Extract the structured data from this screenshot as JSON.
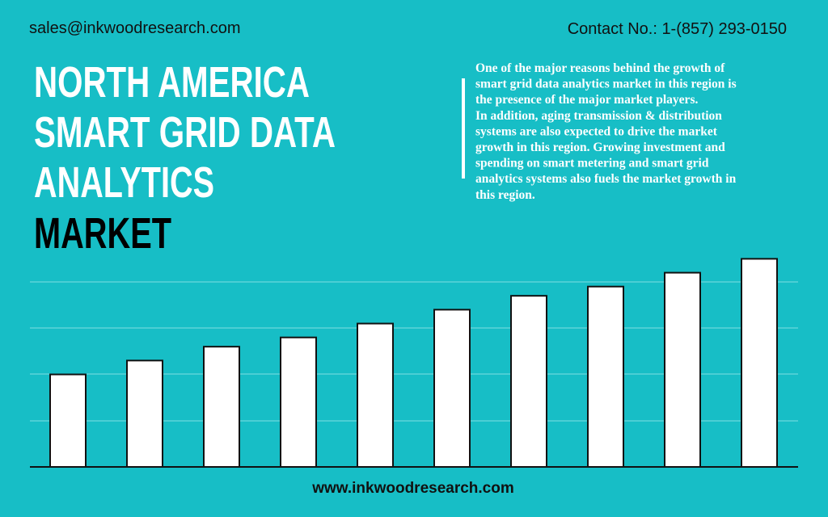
{
  "header": {
    "email": "sales@inkwoodresearch.com",
    "contact": "Contact No.: 1-(857) 293-0150"
  },
  "title": [
    "NORTH AMERICA",
    "SMART GRID DATA",
    "ANALYTICS",
    "MARKET"
  ],
  "description": [
    "One of the major reasons behind the growth of",
    "smart grid data analytics market in this region is",
    "the presence of the major market players.",
    "In addition, aging transmission & distribution",
    "systems are also expected to drive the market",
    "growth in this region. Growing investment and",
    "spending on smart metering and smart grid",
    "analytics systems also fuels the market growth in",
    "this region."
  ],
  "chart_data": {
    "type": "bar",
    "categories": [
      null,
      null,
      null,
      null,
      null,
      null,
      null,
      null,
      null,
      null
    ],
    "values": [
      2.0,
      2.3,
      2.6,
      2.8,
      3.1,
      3.4,
      3.7,
      3.9,
      4.2,
      4.5
    ],
    "color": "#ffffff",
    "ylim": [
      0,
      4.5
    ]
  },
  "footer": "www.inkwoodresearch.com"
}
